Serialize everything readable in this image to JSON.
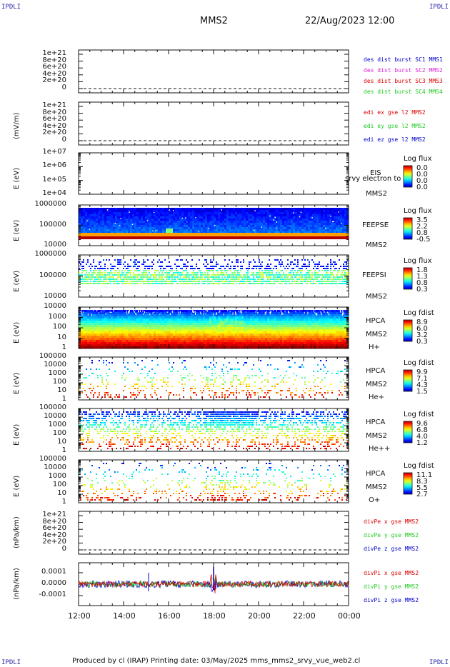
{
  "corner_labels": {
    "tl": "IPDLI",
    "tr": "IPDLI",
    "bl": "IPDLI",
    "br": "IPDLI"
  },
  "header": {
    "mission": "MMS2",
    "datetime": "22/Aug/2023 12:00"
  },
  "footer": {
    "text": "Produced by cl (IRAP)    Printing date: 03/May/2025    mms_mms2_srvy_vue_web2.cl"
  },
  "x_axis": {
    "ticks": [
      "12:00",
      "14:00",
      "16:00",
      "18:00",
      "20:00",
      "22:00",
      "00:00"
    ]
  },
  "colors": {
    "red": "#dd0000",
    "green": "#22cc22",
    "blue": "#0000cc",
    "magenta": "#dd22dd",
    "black": "#111111"
  },
  "chart_data": [
    {
      "type": "line",
      "panel": "des-dist-burst",
      "ylabel": "",
      "ylim": [
        0,
        1e+21
      ],
      "yticks": [
        "1e+21",
        "8e+20",
        "6e+20",
        "4e+20",
        "2e+20",
        "0"
      ],
      "series": [
        {
          "name": "des dist burst SC1 MMS1",
          "color": "blue"
        },
        {
          "name": "des dist burst SC2 MMS2",
          "color": "magenta"
        },
        {
          "name": "des dist burst SC3 MMS3",
          "color": "red"
        },
        {
          "name": "des dist burst SC4 MMS4",
          "color": "green"
        }
      ]
    },
    {
      "type": "line",
      "panel": "edi-e",
      "ylabel": "(mV/m)",
      "ylim": [
        0,
        1e+21
      ],
      "yticks": [
        "1e+21",
        "8e+20",
        "6e+20",
        "4e+20",
        "2e+20",
        "0"
      ],
      "series": [
        {
          "name": "edi ex gse l2 MMS2",
          "color": "red"
        },
        {
          "name": "edi ey gse l2 MMS2",
          "color": "green"
        },
        {
          "name": "edi ez gse l2 MMS2",
          "color": "blue"
        }
      ]
    },
    {
      "type": "heatmap",
      "panel": "eis",
      "ylabel": "E (eV)",
      "yscale": "log",
      "yticks": [
        "1e+07",
        "1e+06",
        "1e+05",
        "1e+04"
      ],
      "labels": [
        "EIS",
        "MMS2"
      ],
      "overlay": "srvy electron to",
      "colorbar": {
        "title": "Log flux",
        "values": [
          "0.0",
          "0.0",
          "0.0",
          "0.0"
        ]
      }
    },
    {
      "type": "heatmap",
      "panel": "feeps-e",
      "ylabel": "E (eV)",
      "yscale": "log",
      "yticks": [
        "1000000",
        "100000",
        "10000"
      ],
      "labels": [
        "FEEPSE",
        "MMS2"
      ],
      "colorbar": {
        "title": "Log flux",
        "values": [
          "3.5",
          "2.2",
          "0.8",
          "-0.5"
        ]
      }
    },
    {
      "type": "heatmap",
      "panel": "feeps-i",
      "ylabel": "E (eV)",
      "yscale": "log",
      "yticks": [
        "1000000",
        "100000",
        "10000"
      ],
      "labels": [
        "FEEPSI",
        "MMS2"
      ],
      "colorbar": {
        "title": "Log flux",
        "values": [
          "1.8",
          "1.3",
          "0.8",
          "0.3"
        ]
      }
    },
    {
      "type": "heatmap",
      "panel": "hpca-h",
      "ylabel": "E (eV)",
      "yscale": "log",
      "yticks": [
        "10000",
        "1000",
        "100",
        "10",
        "1"
      ],
      "labels": [
        "HPCA",
        "MMS2",
        "H+"
      ],
      "colorbar": {
        "title": "Log fdist",
        "values": [
          "8.9",
          "6.0",
          "3.2",
          "0.3"
        ]
      }
    },
    {
      "type": "heatmap",
      "panel": "hpca-he",
      "ylabel": "E (eV)",
      "yscale": "log",
      "yticks": [
        "100000",
        "10000",
        "1000",
        "100",
        "10",
        "1"
      ],
      "labels": [
        "HPCA",
        "MMS2",
        "He+"
      ],
      "colorbar": {
        "title": "Log fdist",
        "values": [
          "9.9",
          "7.1",
          "4.3",
          "1.5"
        ]
      }
    },
    {
      "type": "heatmap",
      "panel": "hpca-hepp",
      "ylabel": "E (eV)",
      "yscale": "log",
      "yticks": [
        "100000",
        "10000",
        "1000",
        "100",
        "10",
        "1"
      ],
      "labels": [
        "HPCA",
        "MMS2",
        "He++"
      ],
      "colorbar": {
        "title": "Log fdist",
        "values": [
          "9.6",
          "6.8",
          "4.0",
          "1.2"
        ]
      }
    },
    {
      "type": "heatmap",
      "panel": "hpca-o",
      "ylabel": "E (eV)",
      "yscale": "log",
      "yticks": [
        "100000",
        "10000",
        "1000",
        "100",
        "10",
        "1"
      ],
      "labels": [
        "HPCA",
        "MMS2",
        "O+"
      ],
      "colorbar": {
        "title": "Log fdist",
        "values": [
          "11.1",
          "8.3",
          "5.5",
          "2.7"
        ]
      }
    },
    {
      "type": "line",
      "panel": "divpe",
      "ylabel": "(nPa/km)",
      "ylim": [
        0,
        1e+21
      ],
      "yticks": [
        "1e+21",
        "8e+20",
        "6e+20",
        "4e+20",
        "2e+20",
        "0"
      ],
      "series": [
        {
          "name": "divPe x gse MMS2",
          "color": "red"
        },
        {
          "name": "divPe y gse MMS2",
          "color": "green"
        },
        {
          "name": "divPe z gse MMS2",
          "color": "blue"
        }
      ]
    },
    {
      "type": "line",
      "panel": "divpi",
      "ylabel": "(nPa/km)",
      "ylim": [
        -0.00015,
        0.00015
      ],
      "yticks": [
        "0.0001",
        "0.0000",
        "-0.0001"
      ],
      "series": [
        {
          "name": "divPi x gse MMS2",
          "color": "red"
        },
        {
          "name": "divPi y gse MMS2",
          "color": "green"
        },
        {
          "name": "divPi z gse MMS2",
          "color": "blue"
        }
      ]
    }
  ]
}
